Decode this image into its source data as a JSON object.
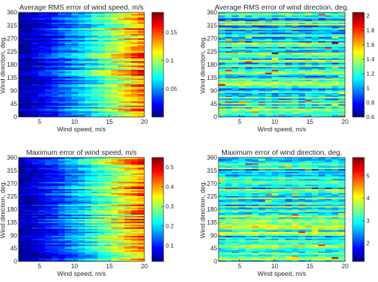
{
  "chart_data": [
    {
      "type": "heatmap",
      "title": "Average RMS error of wind speed, m/s",
      "xlabel": "Wind speed, m/s",
      "ylabel": "Wind direction, deg.",
      "xlim": [
        2,
        20
      ],
      "ylim": [
        0,
        360
      ],
      "xticks": [
        "5",
        "10",
        "15",
        "20"
      ],
      "yticks": [
        "0",
        "45",
        "90",
        "135",
        "180",
        "225",
        "270",
        "315",
        "360"
      ],
      "colorbar": {
        "min": 0.0,
        "max": 0.185,
        "ticks": [
          "0.05",
          "0.1",
          "0.15"
        ],
        "tick_values": [
          0.05,
          0.1,
          0.15
        ]
      },
      "colormap": "jet",
      "pattern": "increases with wind speed",
      "value_range": [
        0.005,
        0.185
      ]
    },
    {
      "type": "heatmap",
      "title": "Average RMS error of wind direction, deg.",
      "xlabel": "Wind speed, m/s",
      "ylabel": "Wind direction, deg.",
      "xlim": [
        2,
        20
      ],
      "ylim": [
        0,
        360
      ],
      "xticks": [
        "5",
        "10",
        "15",
        "20"
      ],
      "yticks": [
        "0",
        "45",
        "90",
        "135",
        "180",
        "225",
        "270",
        "315",
        "360"
      ],
      "colorbar": {
        "min": 0.6,
        "max": 2.05,
        "ticks": [
          "0.6",
          "0.8",
          "1",
          "1.2",
          "1.4",
          "1.6",
          "1.8",
          "2"
        ],
        "tick_values": [
          0.6,
          0.8,
          1.0,
          1.2,
          1.4,
          1.6,
          1.8,
          2.0
        ]
      },
      "colormap": "jet",
      "pattern": "horizontal banding by wind direction",
      "value_range": [
        0.6,
        2.05
      ]
    },
    {
      "type": "heatmap",
      "title": "Maximum error of wind speed, m/s",
      "xlabel": "Wind speed, m/s",
      "ylabel": "Wind direction, deg.",
      "xlim": [
        2,
        20
      ],
      "ylim": [
        0,
        360
      ],
      "xticks": [
        "5",
        "10",
        "15",
        "20"
      ],
      "yticks": [
        "0",
        "45",
        "90",
        "135",
        "180",
        "225",
        "270",
        "315",
        "360"
      ],
      "colorbar": {
        "min": 0.02,
        "max": 0.55,
        "ticks": [
          "0.1",
          "0.2",
          "0.3",
          "0.4",
          "0.5"
        ],
        "tick_values": [
          0.1,
          0.2,
          0.3,
          0.4,
          0.5
        ]
      },
      "colormap": "jet",
      "pattern": "increases with wind speed",
      "value_range": [
        0.02,
        0.55
      ]
    },
    {
      "type": "heatmap",
      "title": "Maximum error of wind direction, deg.",
      "xlabel": "Wind speed, m/s",
      "ylabel": "Wind direction, deg.",
      "xlim": [
        2,
        20
      ],
      "ylim": [
        0,
        360
      ],
      "xticks": [
        "5",
        "10",
        "15",
        "20"
      ],
      "yticks": [
        "0",
        "45",
        "90",
        "135",
        "180",
        "225",
        "270",
        "315",
        "360"
      ],
      "colorbar": {
        "min": 1.2,
        "max": 5.8,
        "ticks": [
          "2",
          "3",
          "4",
          "5"
        ],
        "tick_values": [
          2,
          3,
          4,
          5
        ]
      },
      "colormap": "jet",
      "pattern": "horizontal banding by wind direction",
      "value_range": [
        1.2,
        5.8
      ]
    }
  ]
}
